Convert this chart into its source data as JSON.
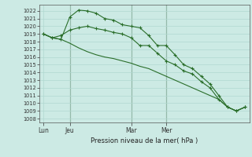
{
  "bg_color": "#cceae4",
  "grid_color": "#b0d8d0",
  "line_color": "#2a6e2a",
  "ylabel_text": "Pression niveau de la mer( hPa )",
  "ylim": [
    1007.5,
    1022.8
  ],
  "yticks": [
    1008,
    1009,
    1010,
    1011,
    1012,
    1013,
    1014,
    1015,
    1016,
    1017,
    1018,
    1019,
    1020,
    1021,
    1022
  ],
  "xtick_labels": [
    "Lun",
    "Jeu",
    "Mar",
    "Mer"
  ],
  "xtick_positions": [
    0,
    3,
    10,
    14
  ],
  "n_points": 24,
  "vline_color": "#557755",
  "series1_x": [
    0,
    1,
    2,
    3,
    4,
    5,
    6,
    7,
    8,
    9,
    10,
    11,
    12,
    13,
    14,
    15,
    16,
    17,
    18,
    19,
    20,
    21,
    22,
    23
  ],
  "series1_y": [
    1019.0,
    1018.5,
    1018.3,
    1021.2,
    1022.1,
    1022.0,
    1021.7,
    1021.0,
    1020.8,
    1020.2,
    1020.0,
    1019.8,
    1018.8,
    1017.5,
    1017.5,
    1016.3,
    1015.0,
    1014.5,
    1013.5,
    1012.5,
    1011.0,
    1009.5,
    1009.0,
    1009.5
  ],
  "series2_x": [
    0,
    1,
    2,
    3,
    4,
    5,
    6,
    7,
    8,
    9,
    10,
    11,
    12,
    13,
    14,
    15,
    16,
    17,
    18,
    19,
    20,
    21,
    22,
    23
  ],
  "series2_y": [
    1019.0,
    1018.5,
    1018.8,
    1019.5,
    1019.8,
    1020.0,
    1019.7,
    1019.5,
    1019.2,
    1019.0,
    1018.5,
    1017.5,
    1017.5,
    1016.5,
    1015.5,
    1015.0,
    1014.2,
    1013.8,
    1012.8,
    1012.0,
    1010.5,
    1009.5,
    1009.0,
    1009.5
  ],
  "series3_x": [
    0,
    1,
    2,
    3,
    4,
    5,
    6,
    7,
    8,
    9,
    10,
    11,
    12,
    13,
    14,
    15,
    16,
    17,
    18,
    19,
    20,
    21,
    22,
    23
  ],
  "series3_y": [
    1019.0,
    1018.5,
    1018.3,
    1017.8,
    1017.2,
    1016.7,
    1016.3,
    1016.0,
    1015.8,
    1015.5,
    1015.2,
    1014.8,
    1014.5,
    1014.0,
    1013.5,
    1013.0,
    1012.5,
    1012.0,
    1011.5,
    1011.0,
    1010.5,
    1009.5,
    1009.0,
    1009.5
  ]
}
